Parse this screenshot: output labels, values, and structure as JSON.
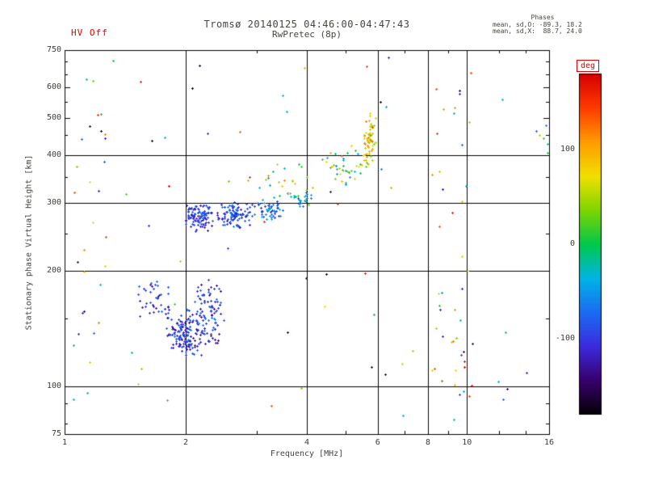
{
  "annotations": {
    "hv_off": "HV Off",
    "phases_label": "Phases",
    "phases_mean_o": "mean, sd,O: -89.3, 18.2",
    "phases_mean_x": "mean, sd,X:  88.7, 24.0"
  },
  "colors": {
    "hv_off_text": "#e00000",
    "unit_label_text": "#e00000",
    "plot_text": "#45453c",
    "axis_lines": "#000000",
    "background": "#ffffff"
  },
  "chart_data": {
    "type": "scatter",
    "title": "Tromsø 20140125 04:46:00-04:47:43",
    "subtitle": "RwPretec (8p)",
    "x_axis": {
      "label": "Frequency [MHz]",
      "scale": "log",
      "range": [
        1,
        16
      ],
      "ticks": [
        1,
        2,
        4,
        6,
        8,
        10,
        16
      ],
      "minor_ticks": [
        3,
        5,
        7,
        9,
        12,
        14
      ],
      "grid_ticks": [
        2,
        4,
        6,
        8,
        10
      ]
    },
    "y_axis": {
      "label": "Stationary phase Virtual Height [km]",
      "scale": "log",
      "range": [
        75,
        750
      ],
      "ticks": [
        75,
        100,
        200,
        300,
        400,
        500,
        600,
        750
      ],
      "minor_ticks": [
        80,
        90,
        150,
        250,
        350,
        450,
        550,
        650,
        700
      ],
      "grid_ticks": [
        100,
        200,
        300,
        400
      ]
    },
    "colorbar": {
      "unit_label": "deg",
      "range": [
        -180,
        180
      ],
      "ticks": [
        100,
        0,
        -100
      ],
      "stops": [
        {
          "t": 0.0,
          "c": "#050005"
        },
        {
          "t": 0.1,
          "c": "#38006e"
        },
        {
          "t": 0.2,
          "c": "#3b2bde"
        },
        {
          "t": 0.3,
          "c": "#1b6cf2"
        },
        {
          "t": 0.4,
          "c": "#00b4e6"
        },
        {
          "t": 0.5,
          "c": "#00c84b"
        },
        {
          "t": 0.6,
          "c": "#7fd400"
        },
        {
          "t": 0.7,
          "c": "#f0e000"
        },
        {
          "t": 0.8,
          "c": "#ff9d00"
        },
        {
          "t": 0.9,
          "c": "#ff3c00"
        },
        {
          "t": 1.0,
          "c": "#d80000"
        }
      ]
    },
    "stats": {
      "mean_sd_O": [
        -89.3,
        18.2
      ],
      "mean_sd_X": [
        88.7,
        24.0
      ]
    },
    "clusters": [
      {
        "name": "E-trace-left",
        "x": [
          1.5,
          1.85
        ],
        "y": [
          148,
          192
        ],
        "deg": [
          -130,
          -70
        ],
        "count": 40
      },
      {
        "name": "E-trace-core",
        "x": [
          1.78,
          2.25
        ],
        "y": [
          118,
          162
        ],
        "deg": [
          -135,
          -60
        ],
        "count": 150
      },
      {
        "name": "E-trace-right",
        "x": [
          2.1,
          2.5
        ],
        "y": [
          125,
          200
        ],
        "deg": [
          -140,
          -60
        ],
        "count": 80
      },
      {
        "name": "F-trace-left",
        "x": [
          1.95,
          2.4
        ],
        "y": [
          252,
          302
        ],
        "deg": [
          -130,
          -70
        ],
        "count": 110
      },
      {
        "name": "F-trace-mid",
        "x": [
          2.35,
          2.95
        ],
        "y": [
          256,
          302
        ],
        "deg": [
          -130,
          -50
        ],
        "count": 110
      },
      {
        "name": "F-trace-right",
        "x": [
          2.9,
          3.55
        ],
        "y": [
          268,
          308
        ],
        "deg": [
          -120,
          -30
        ],
        "count": 55
      },
      {
        "name": "F-rise",
        "x": [
          3.5,
          4.25
        ],
        "y": [
          288,
          325
        ],
        "deg": [
          -90,
          40
        ],
        "count": 28
      },
      {
        "name": "mid-scatter",
        "x": [
          3.0,
          4.2
        ],
        "y": [
          300,
          400
        ],
        "deg": [
          -60,
          120
        ],
        "count": 22
      },
      {
        "name": "cusp-trace",
        "x": [
          4.35,
          5.55
        ],
        "y": [
          320,
          430
        ],
        "deg": [
          -70,
          110
        ],
        "count": 40
      },
      {
        "name": "cusp-column",
        "x": [
          5.5,
          5.95
        ],
        "y": [
          360,
          530
        ],
        "deg": [
          30,
          130
        ],
        "count": 60
      },
      {
        "name": "left-edge-column",
        "x": [
          1.03,
          1.28
        ],
        "y": [
          85,
          700
        ],
        "deg": [
          -180,
          180
        ],
        "count": 30,
        "spread": "uniform"
      },
      {
        "name": "col-8-5",
        "x": [
          8.15,
          8.8
        ],
        "y": [
          85,
          620
        ],
        "deg": [
          -180,
          180
        ],
        "count": 16,
        "spread": "uniform"
      },
      {
        "name": "col-9-7",
        "x": [
          9.1,
          10.3
        ],
        "y": [
          85,
          660
        ],
        "deg": [
          -180,
          180
        ],
        "count": 26,
        "spread": "uniform"
      },
      {
        "name": "background",
        "x": [
          1.3,
          15.5
        ],
        "y": [
          80,
          740
        ],
        "deg": [
          -180,
          180
        ],
        "count": 60,
        "spread": "uniform"
      },
      {
        "name": "right-edge",
        "x": [
          14.8,
          15.9
        ],
        "y": [
          380,
          660
        ],
        "deg": [
          -120,
          60
        ],
        "count": 6,
        "spread": "uniform"
      }
    ]
  }
}
